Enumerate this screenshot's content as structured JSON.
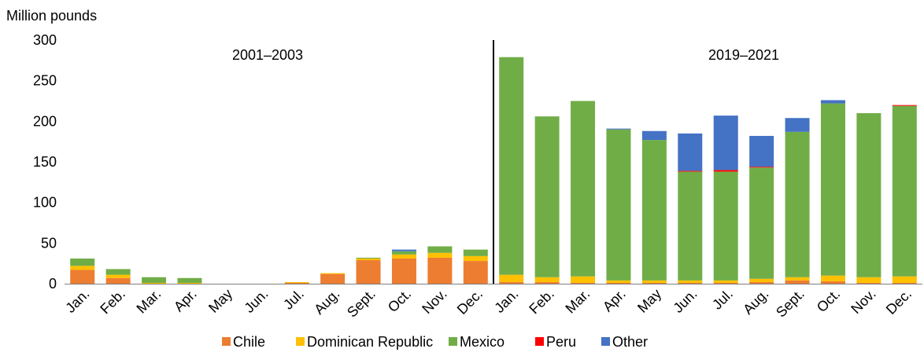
{
  "chart_data": {
    "type": "bar",
    "stacked": true,
    "ylabel": "Million pounds",
    "ylim": [
      0,
      300
    ],
    "yticks": [
      0,
      50,
      100,
      150,
      200,
      250,
      300
    ],
    "period_labels": [
      "2001–2003",
      "2019–2021"
    ],
    "categories": [
      "Jan.",
      "Feb.",
      "Mar.",
      "Apr.",
      "May",
      "Jun.",
      "Jul.",
      "Aug.",
      "Sept.",
      "Oct.",
      "Nov.",
      "Dec.",
      "Jan.",
      "Feb.",
      "Mar.",
      "Apr.",
      "May",
      "Jun.",
      "Jul.",
      "Aug.",
      "Sept.",
      "Oct.",
      "Nov.",
      "Dec."
    ],
    "legend_position": "bottom",
    "grid": false,
    "series": [
      {
        "name": "Chile",
        "color": "#ED7D31",
        "values": [
          17,
          7,
          0,
          0,
          0,
          0,
          1,
          12,
          29,
          31,
          32,
          28,
          2,
          2,
          1,
          1,
          1,
          1,
          1,
          2,
          4,
          3,
          1,
          1
        ]
      },
      {
        "name": "Dominican Republic",
        "color": "#FFC000",
        "values": [
          5,
          4,
          1,
          1,
          0,
          0,
          1,
          1,
          2,
          5,
          6,
          6,
          9,
          6,
          8,
          3,
          3,
          3,
          3,
          4,
          4,
          7,
          7,
          8
        ]
      },
      {
        "name": "Mexico",
        "color": "#70AD47",
        "values": [
          9,
          7,
          7,
          6,
          0,
          0,
          0,
          0,
          1,
          4,
          8,
          8,
          268,
          198,
          216,
          186,
          173,
          134,
          134,
          137,
          179,
          212,
          202,
          210
        ]
      },
      {
        "name": "Peru",
        "color": "#FF0000",
        "values": [
          0,
          0,
          0,
          0,
          0,
          0,
          0,
          0,
          0,
          0,
          0,
          0,
          0,
          0,
          0,
          0,
          0,
          1,
          2,
          1,
          0,
          0,
          0,
          1
        ]
      },
      {
        "name": "Other",
        "color": "#4472C4",
        "values": [
          0,
          0,
          0,
          0,
          0,
          0,
          0,
          0,
          0,
          2,
          0,
          0,
          0,
          0,
          0,
          1,
          11,
          46,
          67,
          38,
          17,
          4,
          0,
          0
        ]
      }
    ]
  }
}
